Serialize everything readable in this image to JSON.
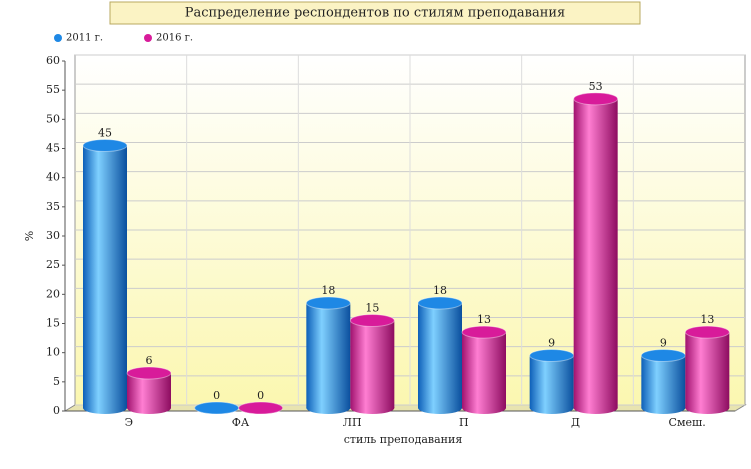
{
  "chart_data": {
    "type": "bar",
    "title": "Распределение респондентов по стилям преподавания",
    "categories": [
      "Э",
      "ФА",
      "ЛП",
      "П",
      "Д",
      "Смеш."
    ],
    "series": [
      {
        "name": "2011 г.",
        "color": "#1e88e5",
        "values": [
          45,
          0,
          18,
          18,
          9,
          9
        ]
      },
      {
        "name": "2016 г.",
        "color": "#d81b9a",
        "values": [
          6,
          0,
          15,
          13,
          53,
          13
        ]
      }
    ],
    "y_label": "%",
    "x_label": "стиль преподавания",
    "ylim": [
      0,
      60
    ],
    "yticks": [
      0,
      5,
      10,
      15,
      20,
      25,
      30,
      35,
      40,
      45,
      50,
      55,
      60
    ],
    "grid": true
  }
}
